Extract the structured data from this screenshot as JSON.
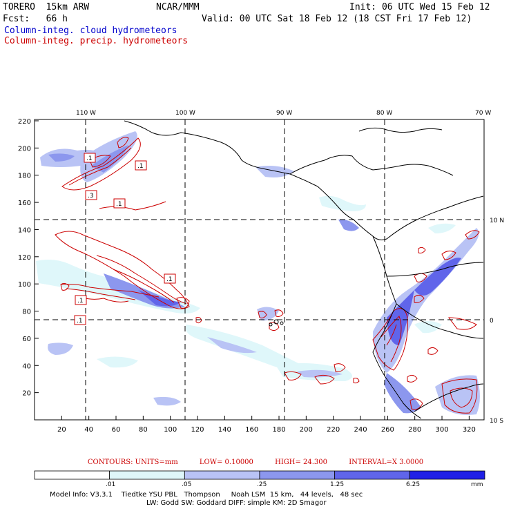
{
  "header": {
    "model": "TORERO  15km ARW",
    "org": "NCAR/MMM",
    "init": "Init: 06 UTC Wed 15 Feb 12",
    "fcst": "Fcst:   66 h",
    "valid": "Valid: 00 UTC Sat 18 Feb 12 (18 CST Fri 17 Feb 12)",
    "field_blue": "Column-integ. cloud hydrometeors",
    "field_red": "Column-integ. precip. hydrometeors"
  },
  "map": {
    "lon_labels": [
      "110 W",
      "100 W",
      "90 W",
      "80 W",
      "70 W"
    ],
    "lat_labels": [
      "10 N",
      "0",
      "10 S"
    ],
    "x_ticks": [
      "20",
      "40",
      "60",
      "80",
      "100",
      "120",
      "140",
      "160",
      "180",
      "200",
      "220",
      "240",
      "260",
      "280",
      "300",
      "320"
    ],
    "y_ticks": [
      "20",
      "40",
      "60",
      "80",
      "100",
      "120",
      "140",
      "160",
      "180",
      "200",
      "220"
    ],
    "contour_labels": [
      ".1",
      ".1",
      ".3",
      ".1",
      ".1",
      ".1",
      ".1"
    ]
  },
  "contours_info": {
    "units": "CONTOURS:  UNITS=mm",
    "low": "LOW= 0.10000",
    "high": "HIGH=  24.300",
    "interval": "INTERVAL=X  3.0000"
  },
  "colorbar": {
    "colors": [
      "#ffffff",
      "#dff7fa",
      "#b9c3f5",
      "#8c97ee",
      "#6065ea",
      "#2020e6"
    ],
    "labels": [
      ".01",
      ".05",
      ".25",
      "1.25",
      "6.25"
    ],
    "unit": "mm"
  },
  "footer": {
    "line1": "Model Info: V3.3.1    Tiedtke YSU PBL   Thompson     Noah LSM  15 km,   44 levels,   48 sec",
    "line2": "LW: Godd SW: Goddard DIFF: simple KM: 2D Smagor"
  }
}
